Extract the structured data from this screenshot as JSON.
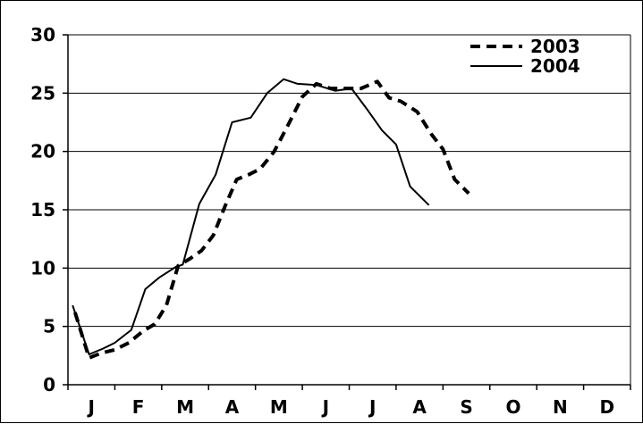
{
  "chart_data": {
    "type": "line",
    "title": "",
    "xlabel": "",
    "ylabel": "",
    "ylim": [
      0,
      30
    ],
    "yticks": [
      0,
      5,
      10,
      15,
      20,
      25,
      30
    ],
    "xlim": [
      0,
      12
    ],
    "month_labels": [
      "J",
      "F",
      "M",
      "A",
      "M",
      "J",
      "J",
      "A",
      "S",
      "O",
      "N",
      "D"
    ],
    "grid": "horizontal",
    "legend_position": "top-right",
    "series": [
      {
        "name": "2003",
        "style": "dashed",
        "color": "#000000",
        "points": [
          [
            0.15,
            6.2
          ],
          [
            0.45,
            2.3
          ],
          [
            0.7,
            2.7
          ],
          [
            1.0,
            3.0
          ],
          [
            1.3,
            3.6
          ],
          [
            1.6,
            4.6
          ],
          [
            1.85,
            5.2
          ],
          [
            2.1,
            6.8
          ],
          [
            2.35,
            10.2
          ],
          [
            2.6,
            10.8
          ],
          [
            2.85,
            11.5
          ],
          [
            3.1,
            12.8
          ],
          [
            3.35,
            15.3
          ],
          [
            3.6,
            17.6
          ],
          [
            3.85,
            18.0
          ],
          [
            4.1,
            18.5
          ],
          [
            4.4,
            20.0
          ],
          [
            4.7,
            22.3
          ],
          [
            5.0,
            24.7
          ],
          [
            5.3,
            25.8
          ],
          [
            5.6,
            25.4
          ],
          [
            5.95,
            25.4
          ],
          [
            6.25,
            25.4
          ],
          [
            6.6,
            26.0
          ],
          [
            6.85,
            24.6
          ],
          [
            7.1,
            24.3
          ],
          [
            7.45,
            23.4
          ],
          [
            7.75,
            21.5
          ],
          [
            8.0,
            20.2
          ],
          [
            8.25,
            17.6
          ],
          [
            8.55,
            16.4
          ]
        ]
      },
      {
        "name": "2004",
        "style": "solid",
        "color": "#000000",
        "points": [
          [
            0.1,
            6.8
          ],
          [
            0.45,
            2.6
          ],
          [
            0.75,
            3.1
          ],
          [
            1.0,
            3.6
          ],
          [
            1.35,
            4.7
          ],
          [
            1.65,
            8.2
          ],
          [
            1.95,
            9.2
          ],
          [
            2.3,
            10.1
          ],
          [
            2.45,
            10.3
          ],
          [
            2.8,
            15.5
          ],
          [
            3.15,
            18.0
          ],
          [
            3.5,
            22.5
          ],
          [
            3.9,
            22.9
          ],
          [
            4.25,
            25.0
          ],
          [
            4.6,
            26.2
          ],
          [
            4.9,
            25.8
          ],
          [
            5.3,
            25.7
          ],
          [
            5.7,
            25.2
          ],
          [
            6.05,
            25.4
          ],
          [
            6.4,
            23.5
          ],
          [
            6.7,
            21.8
          ],
          [
            7.0,
            20.6
          ],
          [
            7.3,
            17.0
          ],
          [
            7.7,
            15.4
          ]
        ]
      }
    ]
  }
}
